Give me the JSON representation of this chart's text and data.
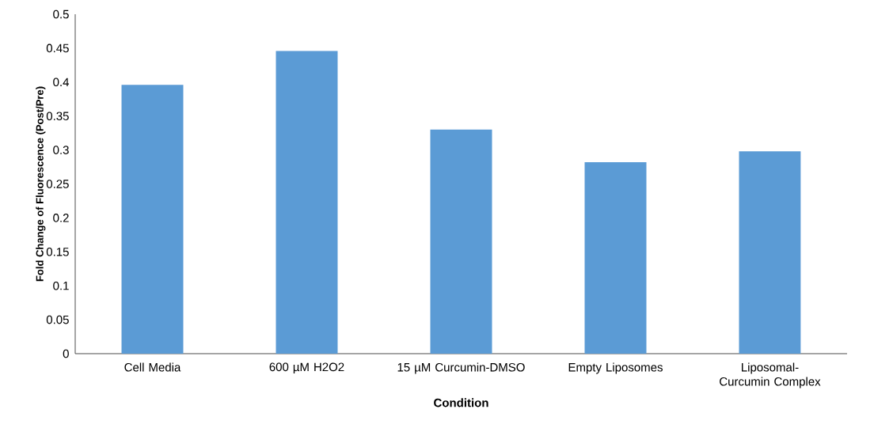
{
  "chart_data": {
    "type": "bar",
    "xlabel": "Condition",
    "ylabel": "Fold Change of Fluorescence (Post/Pre)",
    "categories": [
      "Cell Media",
      "600 µM H2O2",
      "15 µM Curcumin-DMSO",
      "Empty Liposomes",
      "Liposomal-Curcumin Complex"
    ],
    "values": [
      0.396,
      0.446,
      0.33,
      0.282,
      0.298
    ],
    "color": "#5b9bd5",
    "ylim": [
      0,
      0.5
    ],
    "yticks": [
      0,
      0.05,
      0.1,
      0.15,
      0.2,
      0.25,
      0.3,
      0.35,
      0.4,
      0.45,
      0.5
    ]
  }
}
